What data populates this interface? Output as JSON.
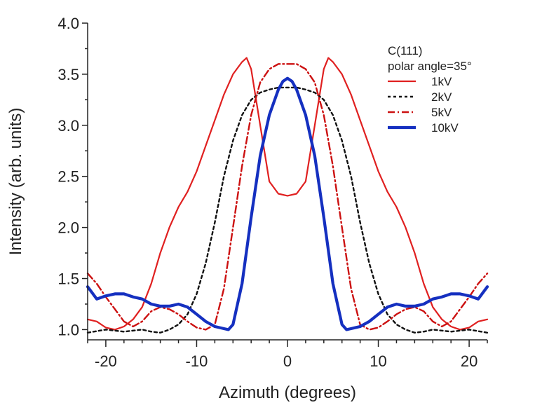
{
  "chart_data": {
    "type": "line",
    "title": "",
    "xlabel": "Azimuth (degrees)",
    "ylabel": "Intensity (arb. units)",
    "xlim": [
      -22,
      22
    ],
    "ylim": [
      0.9,
      4.0
    ],
    "x_ticks": [
      -20,
      -10,
      0,
      10,
      20
    ],
    "x_tick_labels": [
      "-20",
      "-10",
      "0",
      "10",
      "20"
    ],
    "y_ticks": [
      1.0,
      1.5,
      2.0,
      2.5,
      3.0,
      3.5,
      4.0
    ],
    "y_tick_labels": [
      "1.0",
      "1.5",
      "2.0",
      "2.5",
      "3.0",
      "3.5",
      "4.0"
    ],
    "grid": false,
    "legend": {
      "placement": "top-right",
      "title_lines": [
        "C(111)",
        "polar angle=35°"
      ]
    },
    "series": [
      {
        "name": "1kV",
        "color": "#e02020",
        "style": "solid",
        "x": [
          -22,
          -21,
          -20,
          -19,
          -18,
          -17,
          -16,
          -15,
          -14,
          -13,
          -12,
          -11,
          -10,
          -9,
          -8,
          -7,
          -6,
          -5,
          -4.5,
          -4,
          -3,
          -2,
          -1,
          0,
          1,
          2,
          3,
          4,
          4.5,
          5,
          6,
          7,
          8,
          9,
          10,
          11,
          12,
          13,
          14,
          15,
          16,
          17,
          18,
          19,
          20,
          21,
          22
        ],
        "y": [
          1.1,
          1.08,
          1.02,
          1.0,
          1.03,
          1.1,
          1.22,
          1.45,
          1.75,
          2.0,
          2.2,
          2.35,
          2.55,
          2.8,
          3.05,
          3.3,
          3.5,
          3.62,
          3.66,
          3.55,
          3.0,
          2.45,
          2.33,
          2.31,
          2.33,
          2.45,
          3.0,
          3.55,
          3.66,
          3.62,
          3.5,
          3.3,
          3.05,
          2.8,
          2.55,
          2.35,
          2.2,
          2.0,
          1.75,
          1.45,
          1.22,
          1.1,
          1.03,
          1.0,
          1.02,
          1.08,
          1.1
        ]
      },
      {
        "name": "2kV",
        "color": "#111111",
        "style": "dotted",
        "x": [
          -22,
          -20,
          -18,
          -16,
          -15,
          -14,
          -13,
          -12,
          -11,
          -10,
          -9,
          -8,
          -7,
          -6,
          -5,
          -4,
          -3,
          -2,
          -1,
          0,
          1,
          2,
          3,
          4,
          5,
          6,
          7,
          8,
          9,
          10,
          11,
          12,
          13,
          14,
          15,
          16,
          18,
          20,
          22
        ],
        "y": [
          0.97,
          1.0,
          0.98,
          1.0,
          0.98,
          0.97,
          1.0,
          1.05,
          1.15,
          1.35,
          1.65,
          2.05,
          2.5,
          2.85,
          3.1,
          3.25,
          3.32,
          3.35,
          3.37,
          3.37,
          3.37,
          3.35,
          3.32,
          3.25,
          3.1,
          2.85,
          2.5,
          2.05,
          1.65,
          1.35,
          1.15,
          1.05,
          1.0,
          0.97,
          0.98,
          1.0,
          0.98,
          1.0,
          0.97
        ]
      },
      {
        "name": "5kV",
        "color": "#cc1111",
        "style": "dash-dot",
        "x": [
          -22,
          -21,
          -20,
          -19,
          -18,
          -17,
          -16,
          -15,
          -14,
          -13,
          -12,
          -11,
          -10,
          -9,
          -8,
          -7,
          -6,
          -5,
          -4,
          -3,
          -2,
          -1,
          0,
          1,
          2,
          3,
          4,
          5,
          6,
          7,
          8,
          9,
          10,
          11,
          12,
          13,
          14,
          15,
          16,
          17,
          18,
          19,
          20,
          21,
          22
        ],
        "y": [
          1.55,
          1.45,
          1.32,
          1.2,
          1.08,
          1.03,
          1.08,
          1.18,
          1.22,
          1.2,
          1.15,
          1.08,
          1.02,
          1.0,
          1.05,
          1.4,
          2.0,
          2.6,
          3.1,
          3.42,
          3.55,
          3.6,
          3.6,
          3.6,
          3.55,
          3.42,
          3.1,
          2.6,
          2.0,
          1.4,
          1.05,
          1.0,
          1.02,
          1.08,
          1.15,
          1.2,
          1.22,
          1.18,
          1.08,
          1.03,
          1.08,
          1.2,
          1.32,
          1.45,
          1.55
        ]
      },
      {
        "name": "10kV",
        "color": "#1530c0",
        "style": "solid-thick",
        "x": [
          -22,
          -21,
          -20,
          -19,
          -18,
          -17,
          -16,
          -15,
          -14,
          -13,
          -12,
          -11,
          -10,
          -9,
          -8,
          -7,
          -6.5,
          -6,
          -5,
          -4,
          -3,
          -2,
          -1,
          -0.5,
          0,
          0.5,
          1,
          2,
          3,
          4,
          5,
          6,
          6.5,
          7,
          8,
          9,
          10,
          11,
          12,
          13,
          14,
          15,
          16,
          17,
          18,
          19,
          20,
          21,
          22
        ],
        "y": [
          1.42,
          1.3,
          1.33,
          1.35,
          1.35,
          1.32,
          1.3,
          1.25,
          1.23,
          1.23,
          1.25,
          1.22,
          1.15,
          1.08,
          1.03,
          1.01,
          1.0,
          1.05,
          1.45,
          2.1,
          2.7,
          3.1,
          3.35,
          3.43,
          3.46,
          3.43,
          3.35,
          3.1,
          2.7,
          2.1,
          1.45,
          1.05,
          1.0,
          1.01,
          1.03,
          1.08,
          1.15,
          1.22,
          1.25,
          1.23,
          1.23,
          1.25,
          1.3,
          1.32,
          1.35,
          1.35,
          1.33,
          1.3,
          1.42
        ]
      }
    ]
  }
}
